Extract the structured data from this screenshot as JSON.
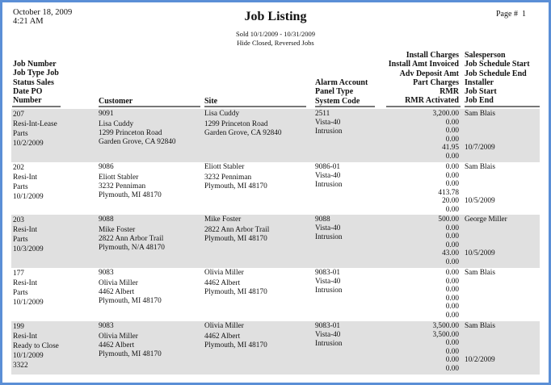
{
  "header": {
    "date": "October 18, 2009",
    "time": "4:21 AM",
    "title": "Job Listing",
    "page_label": "Page #",
    "page_number": "1",
    "subtitle1": "Sold 10/1/2009 - 10/31/2009",
    "subtitle2": "Hide Closed, Reversed Jobs"
  },
  "columns": {
    "job": [
      "Job Number",
      "Job Type Job",
      "Status Sales",
      "Date PO",
      "Number"
    ],
    "customer": "Customer",
    "site": "Site",
    "alarm": [
      "Alarm Account",
      "Panel Type",
      "System Code"
    ],
    "amounts": [
      "Install Charges",
      "Install Amt Invoiced",
      "Adv Deposit Amt",
      "Part Charges",
      "RMR",
      "RMR Activated"
    ],
    "people": [
      "Salesperson",
      "Job Schedule Start",
      "Job Schedule End",
      "Installer",
      "Job Start",
      "Job End"
    ]
  },
  "records": [
    {
      "job": [
        "207",
        "Resi-Int-Lease",
        "Parts",
        "10/2/2009",
        ""
      ],
      "customer": [
        "9091",
        "Lisa Cuddy",
        "1299 Princeton Road",
        "Garden Grove, CA  92840"
      ],
      "site": [
        "Lisa Cuddy",
        "1299 Princeton Road",
        "Garden Grove, CA  92840"
      ],
      "alarm": [
        "2511",
        "Vista-40",
        "Intrusion"
      ],
      "amounts": [
        "3,200.00",
        "0.00",
        "0.00",
        "0.00",
        "41.95",
        "0.00"
      ],
      "people": [
        "Sam Blais",
        "",
        "",
        "",
        "10/7/2009",
        ""
      ]
    },
    {
      "job": [
        "202",
        "Resi-Int",
        "Parts",
        "10/1/2009",
        ""
      ],
      "customer": [
        "9086",
        "Eliott Stabler",
        "3232 Penniman",
        "Plymouth, MI  48170"
      ],
      "site": [
        "Eliott Stabler",
        "3232 Penniman",
        "Plymouth, MI  48170"
      ],
      "alarm": [
        "9086-01",
        "Vista-40",
        "Intrusion"
      ],
      "amounts": [
        "0.00",
        "0.00",
        "0.00",
        "413.78",
        "20.00",
        "0.00"
      ],
      "people": [
        "Sam Blais",
        "",
        "",
        "",
        "10/5/2009",
        ""
      ]
    },
    {
      "job": [
        "203",
        "Resi-Int",
        "Parts",
        "10/3/2009",
        ""
      ],
      "customer": [
        "9088",
        "Mike Foster",
        "2822 Ann Arbor Trail",
        "Plymouth, N/A  48170"
      ],
      "site": [
        "Mike Foster",
        "2822 Ann Arbor Trail",
        "Plymouth, MI  48170"
      ],
      "alarm": [
        "9088",
        "Vista-40",
        "Intrusion"
      ],
      "amounts": [
        "500.00",
        "0.00",
        "0.00",
        "0.00",
        "43.00",
        "0.00"
      ],
      "people": [
        "George Miller",
        "",
        "",
        "",
        "10/5/2009",
        ""
      ]
    },
    {
      "job": [
        "177",
        "Resi-Int",
        "Parts",
        "10/1/2009",
        ""
      ],
      "customer": [
        "9083",
        "Olivia Miller",
        "4462 Albert",
        "Plymouth, MI  48170"
      ],
      "site": [
        "Olivia Miller",
        "4462 Albert",
        "Plymouth, MI  48170"
      ],
      "alarm": [
        "9083-01",
        "Vista-40",
        "Intrusion"
      ],
      "amounts": [
        "0.00",
        "0.00",
        "0.00",
        "0.00",
        "0.00",
        "0.00"
      ],
      "people": [
        "Sam Blais",
        "",
        "",
        "",
        "",
        ""
      ]
    },
    {
      "job": [
        "199",
        "Resi-Int",
        "Ready to Close",
        "10/1/2009",
        "3322"
      ],
      "customer": [
        "9083",
        "Olivia Miller",
        "4462 Albert",
        "Plymouth, MI  48170"
      ],
      "site": [
        "Olivia Miller",
        "4462 Albert",
        "Plymouth, MI  48170"
      ],
      "alarm": [
        "9083-01",
        "Vista-40",
        "Intrusion"
      ],
      "amounts": [
        "3,500.00",
        "3,500.00",
        "0.00",
        "0.00",
        "0.00",
        "0.00"
      ],
      "people": [
        "Sam Blais",
        "",
        "",
        "",
        "10/2/2009",
        ""
      ]
    }
  ]
}
